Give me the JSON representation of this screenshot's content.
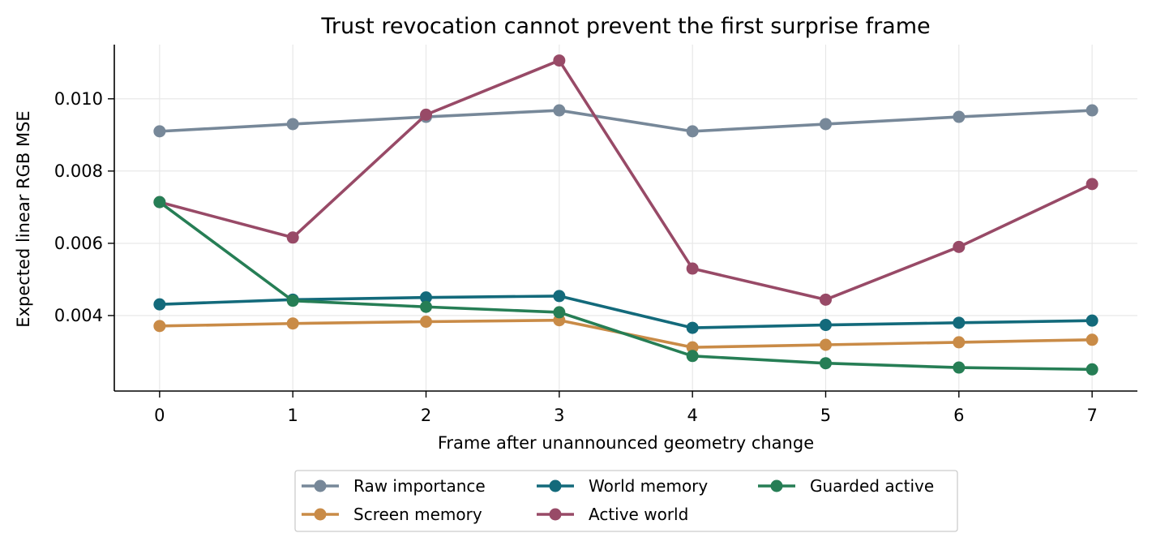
{
  "chart_data": {
    "type": "line",
    "title": "Trust revocation cannot prevent the first surprise frame",
    "xlabel": "Frame after unannounced geometry change",
    "ylabel": "Expected linear RGB MSE",
    "x": [
      0,
      1,
      2,
      3,
      4,
      5,
      6,
      7
    ],
    "x_ticks": [
      "0",
      "1",
      "2",
      "3",
      "4",
      "5",
      "6",
      "7"
    ],
    "y_ticks": [
      "0.004",
      "0.006",
      "0.008",
      "0.010"
    ],
    "xlim": [
      -0.34,
      7.34
    ],
    "ylim": [
      0.00191,
      0.0115
    ],
    "grid": true,
    "legend_position": "below",
    "series": [
      {
        "name": "Raw importance",
        "color": "#778899",
        "values": [
          0.0091,
          0.0093,
          0.0095,
          0.00968,
          0.0091,
          0.0093,
          0.0095,
          0.00968
        ]
      },
      {
        "name": "Screen memory",
        "color": "#C98B47",
        "values": [
          0.00371,
          0.00378,
          0.00383,
          0.00387,
          0.00312,
          0.00319,
          0.00326,
          0.00333
        ]
      },
      {
        "name": "World memory",
        "color": "#136A7B",
        "values": [
          0.00431,
          0.00444,
          0.0045,
          0.00454,
          0.00366,
          0.00374,
          0.0038,
          0.00386
        ]
      },
      {
        "name": "Active world",
        "color": "#984A67",
        "values": [
          0.00714,
          0.00616,
          0.00956,
          0.01106,
          0.0053,
          0.00444,
          0.0059,
          0.00764
        ]
      },
      {
        "name": "Guarded active",
        "color": "#267E55",
        "values": [
          0.00714,
          0.00441,
          0.00424,
          0.00409,
          0.00288,
          0.00268,
          0.00256,
          0.00251
        ]
      }
    ]
  }
}
